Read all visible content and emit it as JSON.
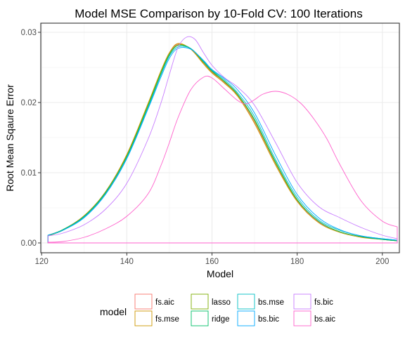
{
  "chart_data": {
    "type": "density",
    "title": "Model MSE Comparison by 10-Fold CV: 100 Iterations",
    "xlabel": "Model",
    "ylabel": "Root Mean Sqaure Error",
    "xlim": [
      119.8,
      204.0
    ],
    "ylim": [
      -0.0014,
      0.0313
    ],
    "x_ticks": [
      120,
      140,
      160,
      180,
      200
    ],
    "x_tick_labels": [
      "120",
      "140",
      "160",
      "180",
      "200"
    ],
    "y_ticks": [
      0.0,
      0.01,
      0.02,
      0.03
    ],
    "y_tick_labels": [
      "0.00",
      "0.01",
      "0.02",
      "0.03"
    ],
    "grid": true,
    "legend": {
      "title": "model",
      "placement": "bottom",
      "entries": [
        "fs.aic",
        "fs.mse",
        "lasso",
        "ridge",
        "bs.mse",
        "bs.bic",
        "fs.bic",
        "bs.aic"
      ]
    },
    "series": [
      {
        "name": "fs.aic",
        "color": "#F8766D",
        "x": [
          121.5,
          125,
          130,
          135,
          140,
          145,
          148,
          150,
          152,
          155,
          158,
          160,
          163,
          166,
          170,
          175,
          180,
          185,
          190,
          195,
          200,
          203.5
        ],
        "y": [
          0.0011,
          0.0018,
          0.0038,
          0.0072,
          0.0125,
          0.0198,
          0.0244,
          0.027,
          0.0283,
          0.0276,
          0.0256,
          0.0243,
          0.0228,
          0.021,
          0.0172,
          0.0112,
          0.006,
          0.003,
          0.0016,
          0.0009,
          0.0005,
          0.0003
        ]
      },
      {
        "name": "fs.mse",
        "color": "#CD9600",
        "x": [
          121.5,
          125,
          130,
          135,
          140,
          145,
          148,
          150,
          152,
          155,
          158,
          160,
          163,
          166,
          170,
          175,
          180,
          185,
          190,
          195,
          200,
          203.5
        ],
        "y": [
          0.0011,
          0.0019,
          0.0039,
          0.0073,
          0.0126,
          0.0199,
          0.0245,
          0.0271,
          0.0284,
          0.0276,
          0.0255,
          0.0242,
          0.0227,
          0.0209,
          0.017,
          0.011,
          0.0059,
          0.0029,
          0.0015,
          0.0008,
          0.0005,
          0.0003
        ]
      },
      {
        "name": "lasso",
        "color": "#7CAE00",
        "x": [
          121.5,
          125,
          130,
          135,
          140,
          145,
          148,
          150,
          152,
          155,
          158,
          160,
          163,
          166,
          170,
          175,
          180,
          185,
          190,
          195,
          200,
          203.5
        ],
        "y": [
          0.001,
          0.0018,
          0.0037,
          0.0071,
          0.0124,
          0.0197,
          0.0243,
          0.0269,
          0.0282,
          0.0277,
          0.0257,
          0.0244,
          0.0229,
          0.0211,
          0.0174,
          0.0113,
          0.0061,
          0.0031,
          0.0016,
          0.0009,
          0.0005,
          0.0003
        ]
      },
      {
        "name": "ridge",
        "color": "#00BE67",
        "x": [
          121.5,
          125,
          130,
          135,
          140,
          145,
          148,
          150,
          152,
          155,
          158,
          160,
          163,
          166,
          170,
          175,
          180,
          185,
          190,
          195,
          200,
          203.5
        ],
        "y": [
          0.0011,
          0.0019,
          0.0038,
          0.0072,
          0.0123,
          0.0195,
          0.0241,
          0.0268,
          0.0281,
          0.0277,
          0.0258,
          0.0245,
          0.023,
          0.0212,
          0.0176,
          0.0115,
          0.0062,
          0.0031,
          0.0016,
          0.0009,
          0.0005,
          0.0003
        ]
      },
      {
        "name": "bs.mse",
        "color": "#00BFC4",
        "x": [
          121.5,
          125,
          130,
          135,
          140,
          145,
          148,
          150,
          152,
          155,
          158,
          160,
          163,
          166,
          170,
          175,
          180,
          185,
          190,
          195,
          200,
          203.5
        ],
        "y": [
          0.0011,
          0.0018,
          0.0037,
          0.007,
          0.0121,
          0.0193,
          0.0239,
          0.0266,
          0.0279,
          0.0277,
          0.0259,
          0.0246,
          0.0232,
          0.0214,
          0.018,
          0.0118,
          0.0065,
          0.0033,
          0.0018,
          0.001,
          0.0006,
          0.0004
        ]
      },
      {
        "name": "bs.bic",
        "color": "#00A9FF",
        "x": [
          121.5,
          125,
          130,
          135,
          140,
          145,
          148,
          150,
          152,
          155,
          158,
          160,
          163,
          166,
          170,
          175,
          180,
          185,
          190,
          195,
          200,
          203.5
        ],
        "y": [
          0.0011,
          0.0018,
          0.0036,
          0.0069,
          0.012,
          0.0191,
          0.0236,
          0.0263,
          0.0277,
          0.0276,
          0.026,
          0.0247,
          0.0234,
          0.0218,
          0.0185,
          0.0124,
          0.0069,
          0.0036,
          0.0019,
          0.001,
          0.0006,
          0.0004
        ]
      },
      {
        "name": "fs.bic",
        "color": "#C77CFF",
        "x": [
          121.5,
          125,
          130,
          135,
          140,
          145,
          148,
          150,
          152,
          154,
          156,
          158,
          160,
          163,
          166,
          170,
          175,
          180,
          185,
          190,
          195,
          200,
          203.5
        ],
        "y": [
          0.001,
          0.0014,
          0.0026,
          0.0048,
          0.0085,
          0.0148,
          0.0199,
          0.024,
          0.0278,
          0.0293,
          0.029,
          0.0271,
          0.0253,
          0.0235,
          0.0222,
          0.0196,
          0.0142,
          0.0086,
          0.0052,
          0.0036,
          0.0022,
          0.0011,
          0.0006
        ]
      },
      {
        "name": "bs.aic",
        "color": "#FF61CC",
        "x": [
          121.5,
          125,
          130,
          135,
          140,
          145,
          148,
          150,
          152,
          155,
          158,
          160,
          163,
          166,
          168,
          170,
          172,
          175,
          178,
          181,
          184,
          187,
          190,
          195,
          200,
          203.5
        ],
        "y": [
          0.0001,
          0.0002,
          0.0008,
          0.002,
          0.0038,
          0.007,
          0.011,
          0.0143,
          0.0178,
          0.0218,
          0.0236,
          0.0235,
          0.0219,
          0.0203,
          0.0198,
          0.0204,
          0.0212,
          0.0216,
          0.0211,
          0.0198,
          0.0176,
          0.0148,
          0.0112,
          0.006,
          0.0031,
          0.0023
        ]
      }
    ]
  }
}
